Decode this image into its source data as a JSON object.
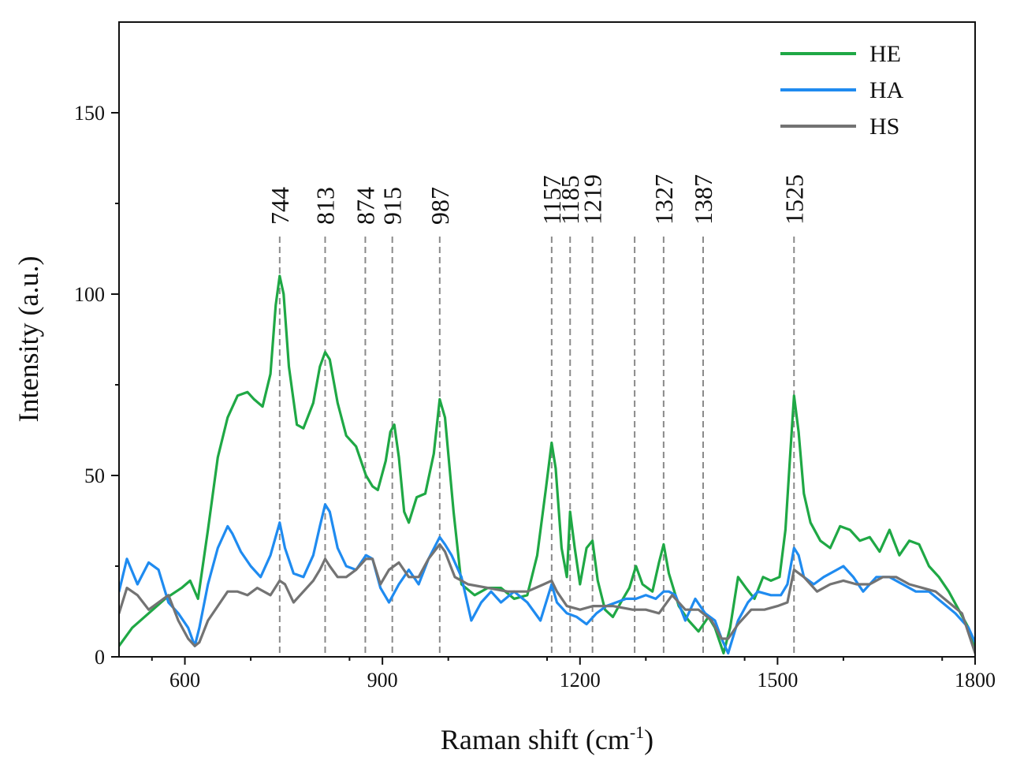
{
  "chart_data": {
    "type": "line",
    "xlabel_main": "Raman shift (cm",
    "xlabel_sup": "-1",
    "xlabel_end": ")",
    "ylabel": "Intensity (a.u.)",
    "xlim": [
      500,
      1800
    ],
    "ylim": [
      0,
      175
    ],
    "xticks": [
      600,
      900,
      1200,
      1500,
      1800
    ],
    "yticks": [
      0,
      50,
      100,
      150
    ],
    "legend_position": "top-right",
    "peak_lines": [
      {
        "x": 744,
        "label": "744"
      },
      {
        "x": 813,
        "label": "813"
      },
      {
        "x": 874,
        "label": "874"
      },
      {
        "x": 915,
        "label": "915"
      },
      {
        "x": 987,
        "label": "987"
      },
      {
        "x": 1157,
        "label": "1157"
      },
      {
        "x": 1185,
        "label": "1185"
      },
      {
        "x": 1219,
        "label": "1219"
      },
      {
        "x": 1283,
        "label": ""
      },
      {
        "x": 1327,
        "label": "1327"
      },
      {
        "x": 1387,
        "label": "1387"
      },
      {
        "x": 1525,
        "label": "1525"
      }
    ],
    "series": [
      {
        "name": "HE",
        "color": "#1fa845",
        "x": [
          500,
          520,
          545,
          570,
          595,
          608,
          620,
          635,
          650,
          665,
          680,
          695,
          705,
          718,
          730,
          738,
          744,
          750,
          758,
          770,
          780,
          795,
          805,
          813,
          820,
          832,
          845,
          860,
          875,
          885,
          893,
          905,
          912,
          918,
          925,
          933,
          940,
          952,
          965,
          978,
          987,
          995,
          1008,
          1020,
          1040,
          1060,
          1080,
          1100,
          1120,
          1135,
          1148,
          1157,
          1163,
          1172,
          1180,
          1185,
          1192,
          1200,
          1210,
          1219,
          1227,
          1238,
          1250,
          1262,
          1275,
          1285,
          1295,
          1310,
          1320,
          1327,
          1335,
          1350,
          1365,
          1380,
          1395,
          1405,
          1418,
          1428,
          1440,
          1452,
          1465,
          1478,
          1490,
          1503,
          1512,
          1520,
          1525,
          1532,
          1540,
          1550,
          1565,
          1580,
          1595,
          1610,
          1625,
          1640,
          1655,
          1670,
          1685,
          1700,
          1715,
          1730,
          1745,
          1760,
          1775,
          1790,
          1800
        ],
        "y": [
          3,
          8,
          12,
          16,
          19,
          21,
          16,
          35,
          55,
          66,
          72,
          73,
          71,
          69,
          78,
          97,
          105,
          100,
          80,
          64,
          63,
          70,
          80,
          84,
          82,
          70,
          61,
          58,
          50,
          47,
          46,
          54,
          62,
          64,
          55,
          40,
          37,
          44,
          45,
          56,
          71,
          66,
          40,
          20,
          17,
          19,
          19,
          16,
          17,
          28,
          46,
          59,
          52,
          30,
          22,
          40,
          30,
          20,
          30,
          32,
          21,
          13,
          11,
          15,
          19,
          25,
          20,
          18,
          26,
          31,
          23,
          14,
          10,
          7,
          11,
          8,
          1,
          8,
          22,
          19,
          16,
          22,
          21,
          22,
          35,
          58,
          72,
          62,
          45,
          37,
          32,
          30,
          36,
          35,
          32,
          33,
          29,
          35,
          28,
          32,
          31,
          25,
          22,
          18,
          13,
          8,
          2
        ]
      },
      {
        "name": "HA",
        "color": "#1f8bf0",
        "x": [
          500,
          512,
          528,
          545,
          560,
          575,
          590,
          605,
          615,
          622,
          635,
          650,
          665,
          672,
          685,
          700,
          715,
          730,
          744,
          752,
          765,
          780,
          795,
          805,
          813,
          820,
          832,
          845,
          860,
          875,
          885,
          897,
          910,
          925,
          940,
          955,
          970,
          987,
          995,
          1005,
          1020,
          1035,
          1050,
          1065,
          1080,
          1100,
          1120,
          1140,
          1157,
          1165,
          1180,
          1195,
          1210,
          1225,
          1240,
          1255,
          1270,
          1285,
          1300,
          1315,
          1327,
          1335,
          1345,
          1360,
          1375,
          1390,
          1405,
          1415,
          1425,
          1440,
          1455,
          1470,
          1490,
          1505,
          1515,
          1525,
          1532,
          1540,
          1555,
          1570,
          1590,
          1600,
          1615,
          1630,
          1650,
          1670,
          1690,
          1710,
          1730,
          1750,
          1770,
          1790,
          1800
        ],
        "y": [
          18,
          27,
          20,
          26,
          24,
          15,
          12,
          8,
          3,
          8,
          20,
          30,
          36,
          34,
          29,
          25,
          22,
          28,
          37,
          30,
          23,
          22,
          28,
          36,
          42,
          40,
          30,
          25,
          24,
          28,
          27,
          19,
          15,
          20,
          24,
          20,
          27,
          33,
          31,
          28,
          22,
          10,
          15,
          18,
          15,
          18,
          15,
          10,
          20,
          15,
          12,
          11,
          9,
          12,
          14,
          15,
          16,
          16,
          17,
          16,
          18,
          18,
          17,
          10,
          16,
          12,
          10,
          5,
          1,
          10,
          15,
          18,
          17,
          17,
          20,
          30,
          28,
          22,
          20,
          22,
          24,
          25,
          22,
          18,
          22,
          22,
          20,
          18,
          18,
          15,
          12,
          8,
          4
        ]
      },
      {
        "name": "HS",
        "color": "#737373",
        "x": [
          500,
          512,
          528,
          545,
          560,
          575,
          590,
          605,
          615,
          622,
          635,
          650,
          665,
          680,
          695,
          710,
          730,
          744,
          752,
          765,
          780,
          795,
          805,
          813,
          820,
          832,
          845,
          860,
          875,
          885,
          897,
          910,
          925,
          940,
          955,
          970,
          987,
          995,
          1010,
          1030,
          1060,
          1090,
          1120,
          1145,
          1157,
          1165,
          1180,
          1200,
          1220,
          1250,
          1280,
          1300,
          1320,
          1340,
          1360,
          1380,
          1400,
          1415,
          1425,
          1440,
          1460,
          1480,
          1500,
          1515,
          1525,
          1540,
          1560,
          1580,
          1600,
          1620,
          1640,
          1660,
          1680,
          1700,
          1720,
          1740,
          1760,
          1780,
          1800
        ],
        "y": [
          12,
          19,
          17,
          13,
          15,
          17,
          10,
          5,
          3,
          4,
          10,
          14,
          18,
          18,
          17,
          19,
          17,
          21,
          20,
          15,
          18,
          21,
          24,
          27,
          25,
          22,
          22,
          24,
          27,
          27,
          20,
          24,
          26,
          22,
          22,
          27,
          31,
          29,
          22,
          20,
          19,
          18,
          18,
          20,
          21,
          18,
          14,
          13,
          14,
          14,
          13,
          13,
          12,
          17,
          13,
          13,
          10,
          5,
          5,
          9,
          13,
          13,
          14,
          15,
          24,
          22,
          18,
          20,
          21,
          20,
          20,
          22,
          22,
          20,
          19,
          18,
          15,
          12,
          1
        ]
      }
    ]
  }
}
